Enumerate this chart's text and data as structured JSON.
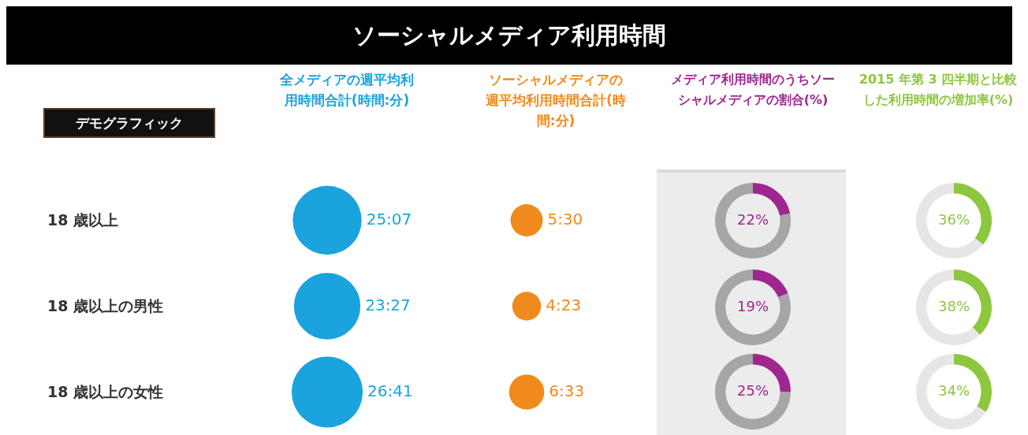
{
  "chart_data": [
    {
      "type": "other",
      "title": "ソーシャルメディア利用時間"
    },
    {
      "type": "other",
      "title": "全メディアの週平均利用時間合計(時間:分)",
      "ylabel": "デモグラフィック",
      "categories": [
        "18 歳以上",
        "18 歳以上の男性",
        "18 歳以上の女性"
      ],
      "values": [
        25.117,
        23.45,
        26.683
      ],
      "value_labels": [
        "25:07",
        "23:27",
        "26:41"
      ],
      "color": "#1aa3dc"
    },
    {
      "type": "other",
      "title": "ソーシャルメディアの週平均利用時間合計(時間:分)",
      "categories": [
        null,
        null,
        null
      ],
      "values": [
        5.5,
        4.383,
        6.55
      ],
      "value_labels": [
        "5:30",
        "4:23",
        "6:33"
      ],
      "color": "#f08a1c"
    },
    {
      "type": "donut",
      "title": "メディア利用時間のうちソーシャルメディアの割合(%)",
      "categories": [
        null,
        null
      ],
      "values": [
        22,
        78
      ],
      "value_labels": [
        "22%",
        null
      ],
      "colors": [
        "#a0268f",
        "#a6a6a6"
      ]
    },
    {
      "type": "donut",
      "categories": [
        null,
        null
      ],
      "values": [
        19,
        81
      ],
      "value_labels": [
        "19%",
        null
      ],
      "colors": [
        "#a0268f",
        "#a6a6a6"
      ]
    },
    {
      "type": "donut",
      "categories": [
        null,
        null
      ],
      "values": [
        25,
        75
      ],
      "value_labels": [
        "25%",
        null
      ],
      "colors": [
        "#a0268f",
        "#a6a6a6"
      ]
    },
    {
      "type": "donut",
      "title": "2015 年第 3 四半期と比較した利用時間の増加率(%)",
      "categories": [
        null,
        null
      ],
      "values": [
        36,
        64
      ],
      "value_labels": [
        "36%",
        null
      ],
      "colors": [
        "#8dc63f",
        "#e6e6e6"
      ]
    },
    {
      "type": "donut",
      "categories": [
        null,
        null
      ],
      "values": [
        38,
        62
      ],
      "value_labels": [
        "38%",
        null
      ],
      "colors": [
        "#8dc63f",
        "#e6e6e6"
      ]
    },
    {
      "type": "donut",
      "categories": [
        null,
        null
      ],
      "values": [
        34,
        66
      ],
      "value_labels": [
        "34%",
        null
      ],
      "colors": [
        "#8dc63f",
        "#e6e6e6"
      ]
    }
  ]
}
